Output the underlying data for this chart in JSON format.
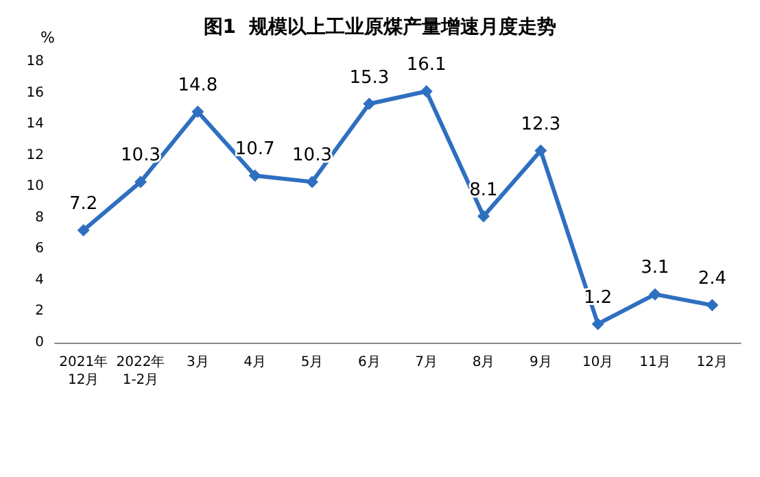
{
  "chart_data": {
    "type": "line",
    "title": "图1  规模以上工业原煤产量增速月度走势",
    "ylabel": "%",
    "categories": [
      "2021年\n12月",
      "2022年\n1-2月",
      "3月",
      "4月",
      "5月",
      "6月",
      "7月",
      "8月",
      "9月",
      "10月",
      "11月",
      "12月"
    ],
    "series": [
      {
        "color": "#2e6fc0",
        "values": [
          7.2,
          10.3,
          14.8,
          10.7,
          10.3,
          15.3,
          16.1,
          8.1,
          12.3,
          1.2,
          3.1,
          2.4
        ]
      }
    ],
    "ylim": [
      0,
      18
    ],
    "yticks": [
      0,
      2,
      4,
      6,
      8,
      10,
      12,
      14,
      16,
      18
    ],
    "grid": false,
    "marker": "diamond",
    "line_style": "solid",
    "data_labels": true
  }
}
